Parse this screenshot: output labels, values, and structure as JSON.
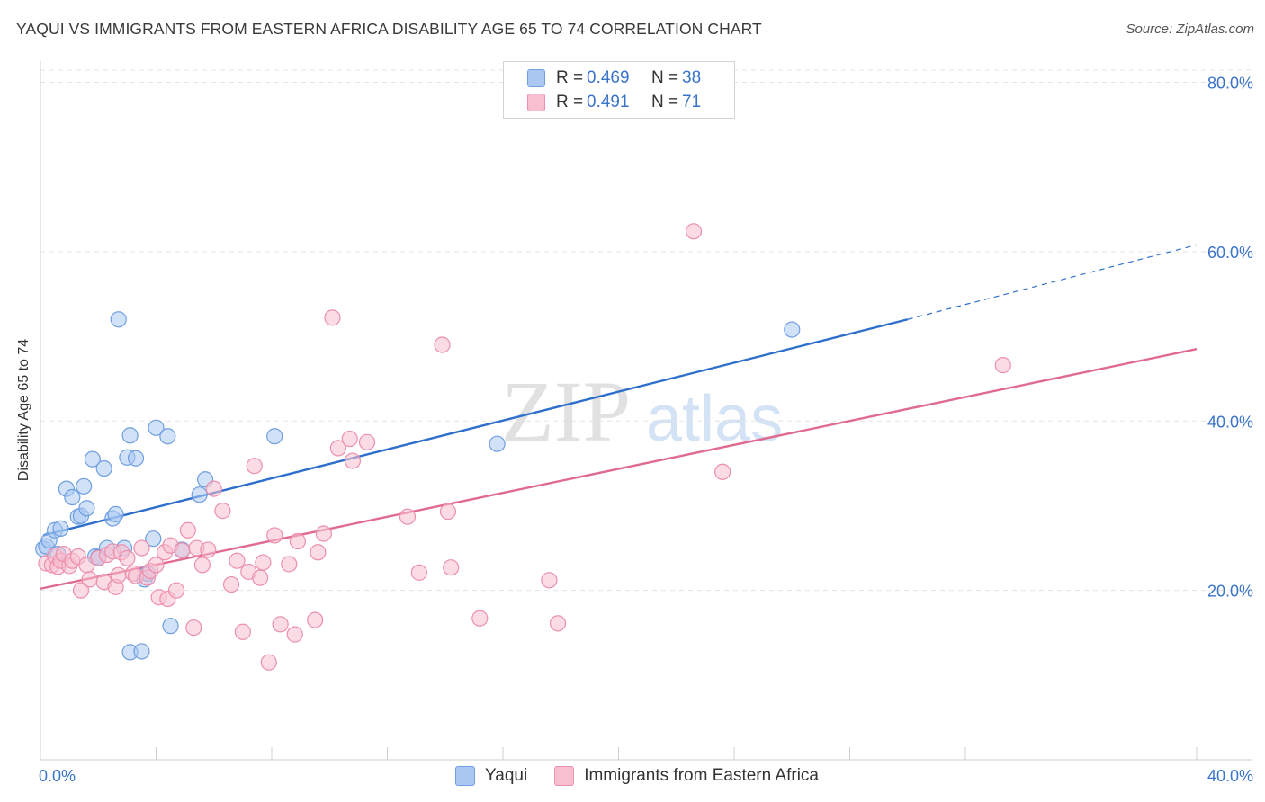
{
  "title": "YAQUI VS IMMIGRANTS FROM EASTERN AFRICA DISABILITY AGE 65 TO 74 CORRELATION CHART",
  "source": "Source: ZipAtlas.com",
  "watermark": {
    "part1": "ZIP",
    "part2": "atlas"
  },
  "legend": {
    "rows": [
      {
        "r_label": "R = ",
        "r_value": "0.469",
        "n_label": "N = ",
        "n_value": "38",
        "fill": "#aac8f2",
        "stroke": "#6f9fe0"
      },
      {
        "r_label": "R = ",
        "r_value": "0.491",
        "n_label": "N = ",
        "n_value": "71",
        "fill": "#f7bfd0",
        "stroke": "#ec8fad"
      }
    ]
  },
  "bottom_legend": [
    "Yaqui",
    "Immigrants from Eastern Africa"
  ],
  "chart_data": {
    "type": "scatter",
    "title": "YAQUI VS IMMIGRANTS FROM EASTERN AFRICA DISABILITY AGE 65 TO 74 CORRELATION CHART",
    "xlabel": "",
    "ylabel": "Disability Age 65 to 74",
    "xlim": [
      0,
      40
    ],
    "ylim": [
      0,
      82.5
    ],
    "x_tick_labels": [
      {
        "value": 0,
        "label": "0.0%"
      },
      {
        "value": 40,
        "label": "40.0%"
      }
    ],
    "y_tick_labels": [
      {
        "value": 20,
        "label": "20.0%"
      },
      {
        "value": 40,
        "label": "40.0%"
      },
      {
        "value": 60,
        "label": "60.0%"
      },
      {
        "value": 80,
        "label": "80.0%"
      }
    ],
    "grid": true,
    "series": [
      {
        "name": "Yaqui",
        "color": "#6f9fe0",
        "fill": "#aac8f2",
        "line_color": "#2f6fcc",
        "trend": {
          "x0": 0.1,
          "y0": 26.5,
          "x1": 30.0,
          "y1": 52.0,
          "dash_x1": 40.0,
          "dash_y1": 60.8
        },
        "points": [
          [
            0.1,
            24.9
          ],
          [
            0.2,
            25.2
          ],
          [
            0.3,
            25.9
          ],
          [
            0.5,
            27.1
          ],
          [
            0.6,
            24.3
          ],
          [
            0.7,
            27.3
          ],
          [
            0.9,
            32.0
          ],
          [
            1.1,
            31.0
          ],
          [
            1.3,
            28.7
          ],
          [
            1.4,
            28.8
          ],
          [
            1.5,
            32.3
          ],
          [
            1.6,
            29.7
          ],
          [
            1.8,
            35.5
          ],
          [
            1.9,
            24.0
          ],
          [
            2.0,
            23.9
          ],
          [
            2.2,
            34.4
          ],
          [
            2.3,
            25.0
          ],
          [
            2.5,
            28.5
          ],
          [
            2.6,
            29.0
          ],
          [
            2.7,
            52.0
          ],
          [
            2.9,
            25.0
          ],
          [
            3.0,
            35.7
          ],
          [
            3.1,
            12.7
          ],
          [
            3.1,
            38.3
          ],
          [
            3.3,
            35.6
          ],
          [
            3.5,
            12.8
          ],
          [
            3.6,
            21.3
          ],
          [
            3.9,
            26.1
          ],
          [
            4.0,
            39.2
          ],
          [
            4.4,
            38.2
          ],
          [
            4.5,
            15.8
          ],
          [
            4.9,
            24.8
          ],
          [
            5.5,
            31.3
          ],
          [
            5.7,
            33.1
          ],
          [
            8.1,
            38.2
          ],
          [
            15.8,
            37.3
          ],
          [
            26.0,
            50.8
          ],
          [
            3.7,
            22.0
          ]
        ]
      },
      {
        "name": "Immigrants from Eastern Africa",
        "color": "#ec8fad",
        "fill": "#f7bfd0",
        "line_color": "#e06a90",
        "trend": {
          "x0": 0.0,
          "y0": 20.2,
          "x1": 40.0,
          "y1": 48.5
        },
        "points": [
          [
            0.2,
            23.2
          ],
          [
            0.4,
            23.0
          ],
          [
            0.5,
            24.1
          ],
          [
            0.6,
            22.8
          ],
          [
            0.7,
            23.5
          ],
          [
            0.8,
            24.3
          ],
          [
            1.0,
            22.9
          ],
          [
            1.1,
            23.5
          ],
          [
            1.3,
            24.0
          ],
          [
            1.4,
            20.0
          ],
          [
            1.6,
            23.0
          ],
          [
            1.7,
            21.3
          ],
          [
            2.0,
            23.8
          ],
          [
            2.2,
            21.0
          ],
          [
            2.3,
            24.2
          ],
          [
            2.5,
            24.6
          ],
          [
            2.6,
            20.4
          ],
          [
            2.7,
            21.8
          ],
          [
            2.8,
            24.5
          ],
          [
            3.0,
            23.8
          ],
          [
            3.2,
            22.0
          ],
          [
            3.3,
            21.7
          ],
          [
            3.5,
            25.0
          ],
          [
            3.7,
            21.5
          ],
          [
            3.8,
            22.3
          ],
          [
            4.0,
            23.0
          ],
          [
            4.1,
            19.2
          ],
          [
            4.3,
            24.5
          ],
          [
            4.4,
            19.0
          ],
          [
            4.5,
            25.3
          ],
          [
            4.7,
            20.0
          ],
          [
            4.9,
            24.7
          ],
          [
            5.1,
            27.1
          ],
          [
            5.3,
            15.6
          ],
          [
            5.4,
            25.0
          ],
          [
            5.6,
            23.0
          ],
          [
            5.8,
            24.8
          ],
          [
            6.0,
            32.0
          ],
          [
            6.3,
            29.4
          ],
          [
            6.6,
            20.7
          ],
          [
            6.8,
            23.5
          ],
          [
            7.0,
            15.1
          ],
          [
            7.2,
            22.2
          ],
          [
            7.4,
            34.7
          ],
          [
            7.6,
            21.5
          ],
          [
            7.7,
            23.3
          ],
          [
            7.9,
            11.5
          ],
          [
            8.1,
            26.5
          ],
          [
            8.3,
            16.0
          ],
          [
            8.6,
            23.1
          ],
          [
            8.8,
            14.8
          ],
          [
            8.9,
            25.8
          ],
          [
            9.5,
            16.5
          ],
          [
            9.6,
            24.5
          ],
          [
            9.8,
            26.7
          ],
          [
            10.1,
            52.2
          ],
          [
            10.3,
            36.8
          ],
          [
            10.7,
            37.9
          ],
          [
            10.8,
            35.3
          ],
          [
            11.3,
            37.5
          ],
          [
            12.7,
            28.7
          ],
          [
            13.1,
            22.1
          ],
          [
            13.9,
            49.0
          ],
          [
            14.1,
            29.3
          ],
          [
            14.2,
            22.7
          ],
          [
            15.2,
            16.7
          ],
          [
            17.6,
            21.2
          ],
          [
            17.9,
            16.1
          ],
          [
            22.6,
            62.4
          ],
          [
            23.6,
            34.0
          ],
          [
            33.3,
            46.6
          ]
        ]
      }
    ]
  }
}
